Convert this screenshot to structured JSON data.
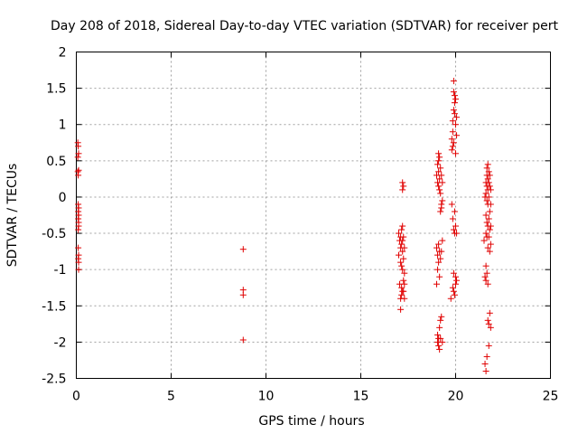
{
  "chart_data": {
    "type": "scatter",
    "title": "Day 208 of 2018, Sidereal Day-to-day VTEC variation (SDTVAR) for receiver pert",
    "xlabel": "GPS time / hours",
    "ylabel": "SDTVAR / TECUs",
    "xlim": [
      0,
      25
    ],
    "ylim": [
      -2.5,
      2
    ],
    "xticks": [
      "0",
      "5",
      "10",
      "15",
      "20",
      "25"
    ],
    "yticks": [
      "2",
      "1.5",
      "1",
      "0.5",
      "0",
      "-0.5",
      "-1",
      "-1.5",
      "-2",
      "-2.5"
    ],
    "grid": true,
    "marker": "+",
    "marker_color": "#e00000",
    "series": [
      {
        "x": [
          0.08,
          0.08,
          0.08,
          0.1,
          0.1,
          0.1,
          0.1,
          0.1,
          0.1,
          0.1,
          0.1,
          0.12,
          0.12,
          0.12,
          0.12,
          0.12,
          0.12,
          0.12,
          0.12,
          0.12,
          8.8,
          8.8,
          8.8,
          8.8,
          17.0,
          17.0,
          17.05,
          17.05,
          17.1,
          17.1,
          17.1,
          17.1,
          17.1,
          17.15,
          17.15,
          17.15,
          17.15,
          17.15,
          17.2,
          17.2,
          17.2,
          17.2,
          17.2,
          17.2,
          17.2,
          17.25,
          17.25,
          17.25,
          17.25,
          17.25,
          17.3,
          17.3,
          17.3,
          17.3,
          19.0,
          19.0,
          19.0,
          19.05,
          19.05,
          19.05,
          19.05,
          19.05,
          19.05,
          19.1,
          19.1,
          19.1,
          19.1,
          19.1,
          19.1,
          19.1,
          19.1,
          19.15,
          19.15,
          19.15,
          19.15,
          19.15,
          19.15,
          19.15,
          19.2,
          19.2,
          19.2,
          19.2,
          19.2,
          19.2,
          19.25,
          19.25,
          19.25,
          19.25,
          19.25,
          19.3,
          19.3,
          19.3,
          19.3,
          19.75,
          19.8,
          19.8,
          19.8,
          19.85,
          19.85,
          19.85,
          19.85,
          19.85,
          19.9,
          19.9,
          19.9,
          19.9,
          19.9,
          19.9,
          19.9,
          19.95,
          19.95,
          19.95,
          19.95,
          19.95,
          19.95,
          20.0,
          20.0,
          20.0,
          20.0,
          20.0,
          20.0,
          20.05,
          20.05,
          20.05,
          20.05,
          21.5,
          21.55,
          21.55,
          21.55,
          21.6,
          21.6,
          21.6,
          21.6,
          21.6,
          21.6,
          21.6,
          21.65,
          21.65,
          21.65,
          21.65,
          21.65,
          21.65,
          21.65,
          21.65,
          21.7,
          21.7,
          21.7,
          21.7,
          21.7,
          21.7,
          21.7,
          21.7,
          21.75,
          21.75,
          21.75,
          21.75,
          21.75,
          21.75,
          21.75,
          21.8,
          21.8,
          21.8,
          21.8,
          21.8,
          21.8,
          21.85,
          21.85,
          21.85,
          21.85,
          21.85
        ],
        "y": [
          0.75,
          0.55,
          0.35,
          0.7,
          0.3,
          -0.1,
          -0.2,
          -0.3,
          -0.45,
          -0.7,
          -0.85,
          0.6,
          0.37,
          -0.15,
          -0.25,
          -0.35,
          -0.4,
          -0.8,
          -0.9,
          -1.0,
          -0.72,
          -1.28,
          -1.35,
          -1.97,
          -0.5,
          -0.8,
          -0.6,
          -1.2,
          -0.55,
          -0.7,
          -0.9,
          -1.4,
          -1.55,
          -0.45,
          -0.65,
          -0.95,
          -1.25,
          -1.35,
          0.1,
          0.2,
          -0.4,
          -0.6,
          -0.75,
          -1.0,
          -1.3,
          0.15,
          -0.55,
          -0.85,
          -1.15,
          -1.3,
          -0.7,
          -1.05,
          -1.2,
          -1.4,
          0.3,
          -0.7,
          -1.2,
          0.45,
          0.2,
          -0.8,
          -1.0,
          -1.9,
          -2.0,
          0.6,
          0.5,
          0.35,
          0.15,
          -0.65,
          -0.9,
          -1.95,
          -2.05,
          0.55,
          0.25,
          0.1,
          -0.75,
          -1.1,
          -1.8,
          -2.1,
          0.4,
          0.05,
          -0.2,
          -0.85,
          -1.7,
          -1.95,
          0.3,
          -0.1,
          -0.15,
          -0.75,
          -1.65,
          0.2,
          -0.05,
          -0.6,
          -2.0,
          -1.4,
          0.65,
          0.8,
          -0.1,
          1.05,
          0.9,
          0.7,
          -0.3,
          -1.25,
          1.6,
          1.45,
          1.2,
          0.75,
          -0.45,
          -1.05,
          -1.3,
          1.4,
          1.3,
          1.15,
          -0.2,
          -0.5,
          -1.35,
          1.35,
          1.0,
          0.6,
          -0.4,
          -1.1,
          -1.2,
          1.1,
          0.85,
          -0.5,
          -1.15,
          -0.6,
          0.0,
          -1.1,
          -2.3,
          0.2,
          0.05,
          -0.25,
          -0.5,
          -0.95,
          -1.15,
          -2.4,
          0.4,
          0.3,
          0.15,
          -0.05,
          -0.35,
          -0.55,
          -1.05,
          -2.2,
          0.45,
          0.25,
          0.1,
          -0.1,
          -0.4,
          -0.7,
          -1.2,
          -1.7,
          0.35,
          0.2,
          0.0,
          -0.3,
          -0.55,
          -1.75,
          -2.05,
          0.3,
          0.15,
          -0.2,
          -0.45,
          -0.75,
          -1.6,
          0.1,
          -0.1,
          -0.4,
          -0.65,
          -1.8
        ]
      }
    ]
  }
}
